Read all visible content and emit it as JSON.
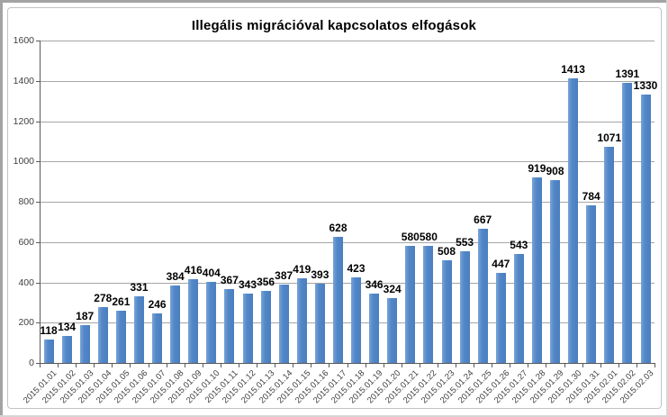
{
  "window": {
    "edge_color_topleft": "#a3a3a3",
    "edge_color_bottomright": "#d6d6d6",
    "frame_border_color": "#c3c3c3",
    "background": "#ffffff"
  },
  "chart_data": {
    "type": "bar",
    "title": "Illegális migrációval kapcsolatos elfogások",
    "xlabel": "",
    "ylabel": "",
    "categories": [
      "2015.01.01",
      "2015.01.02",
      "2015.01.03",
      "2015.01.04",
      "2015.01.05",
      "2015.01.06",
      "2015.01.07",
      "2015.01.08",
      "2015.01.09",
      "2015.01.10",
      "2015.01.11",
      "2015.01.12",
      "2015.01.13",
      "2015.01.14",
      "2015.01.15",
      "2015.01.16",
      "2015.01.17",
      "2015.01.18",
      "2015.01.19",
      "2015.01.20",
      "2015.01.21",
      "2015.01.22",
      "2015.01.23",
      "2015.01.24",
      "2015.01.25",
      "2015.01.26",
      "2015.01.27",
      "2015.01.28",
      "2015.01.29",
      "2015.01.30",
      "2015.01.31",
      "2015.02.01",
      "2015.02.02",
      "2015.02.03"
    ],
    "values": [
      118,
      134,
      187,
      278,
      261,
      331,
      246,
      384,
      416,
      404,
      367,
      343,
      356,
      387,
      419,
      393,
      628,
      423,
      346,
      324,
      580,
      580,
      508,
      553,
      667,
      447,
      543,
      919,
      908,
      1413,
      784,
      1071,
      1391,
      1330
    ],
    "data_labels": true,
    "ylim": [
      0,
      1600
    ],
    "ytick_step": 200,
    "yticks": [
      0,
      200,
      400,
      600,
      800,
      1000,
      1200,
      1400,
      1600
    ],
    "grid": true,
    "legend": "none",
    "colors": {
      "bar": "#5287c8",
      "bar_light": "#7aa4d7",
      "bar_dark": "#4a7ec0",
      "gridline": "#a6a6a6",
      "axis": "#595959",
      "tick_label": "#3f3f3f",
      "value_label": "#000000"
    }
  }
}
